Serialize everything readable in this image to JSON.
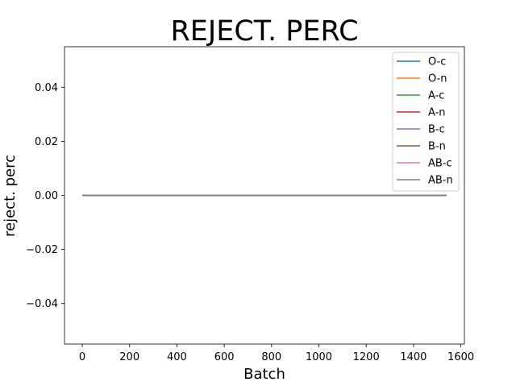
{
  "chart_data": {
    "type": "line",
    "title": "REJECT. PERC",
    "xlabel": "Batch",
    "ylabel": "reject. perc",
    "xlim": [
      -75,
      1615
    ],
    "ylim": [
      -0.055,
      0.055
    ],
    "xticks": [
      0,
      200,
      400,
      600,
      800,
      1000,
      1200,
      1400,
      1600
    ],
    "xtick_labels": [
      "0",
      "200",
      "400",
      "600",
      "800",
      "1000",
      "1200",
      "1400",
      "1600"
    ],
    "yticks": [
      -0.04,
      -0.02,
      0.0,
      0.02,
      0.04
    ],
    "ytick_labels": [
      "−0.04",
      "−0.02",
      "0.00",
      "0.02",
      "0.04"
    ],
    "grid": false,
    "legend_position": "top-right",
    "x": [
      0,
      1540
    ],
    "series": [
      {
        "name": "O-c",
        "color": "#1f77b4",
        "values": [
          0,
          0
        ]
      },
      {
        "name": "O-n",
        "color": "#ff7f0e",
        "values": [
          0,
          0
        ]
      },
      {
        "name": "A-c",
        "color": "#2ca02c",
        "values": [
          0,
          0
        ]
      },
      {
        "name": "A-n",
        "color": "#d62728",
        "values": [
          0,
          0
        ]
      },
      {
        "name": "B-c",
        "color": "#9467bd",
        "values": [
          0,
          0
        ]
      },
      {
        "name": "B-n",
        "color": "#8c564b",
        "values": [
          0,
          0
        ]
      },
      {
        "name": "AB-c",
        "color": "#e377c2",
        "values": [
          0,
          0
        ]
      },
      {
        "name": "AB-n",
        "color": "#7f7f7f",
        "values": [
          0,
          0
        ]
      }
    ]
  }
}
